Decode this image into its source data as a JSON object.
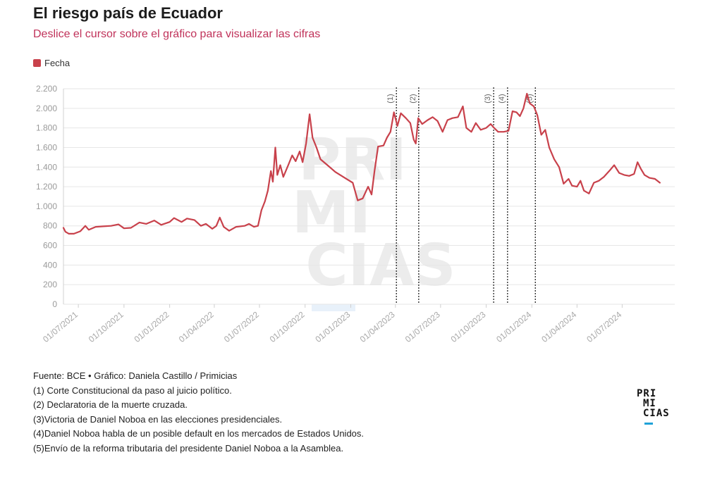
{
  "header": {
    "title": "El riesgo país de Ecuador",
    "subtitle": "Deslice el cursor sobre el gráfico para visualizar las cifras"
  },
  "legend": {
    "label": "Fecha"
  },
  "colors": {
    "line": "#c8414b",
    "subtitle": "#c0325a",
    "grid": "#e6e6e6",
    "logo_bar": "#1fa2d8"
  },
  "watermark": {
    "lines": [
      "PRI",
      "MI",
      "CIAS"
    ]
  },
  "chart_data": {
    "type": "line",
    "title": "El riesgo país de Ecuador",
    "xlabel": "",
    "ylabel": "",
    "ylim": [
      0,
      2200
    ],
    "y_ticks": [
      0,
      200,
      400,
      600,
      800,
      1000,
      1200,
      1400,
      1600,
      1800,
      2000,
      2200
    ],
    "y_tick_labels": [
      "0",
      "200",
      "400",
      "600",
      "800",
      "1.000",
      "1.200",
      "1.400",
      "1.600",
      "1.800",
      "2.000",
      "2.200"
    ],
    "x_range": [
      "2021-06-01",
      "2024-10-15"
    ],
    "x_ticks": [
      "2021-07-01",
      "2021-10-01",
      "2022-01-01",
      "2022-04-01",
      "2022-07-01",
      "2022-10-01",
      "2023-01-01",
      "2023-04-01",
      "2023-07-01",
      "2023-10-01",
      "2024-01-01",
      "2024-04-01",
      "2024-07-01"
    ],
    "x_tick_labels": [
      "01/07/2021",
      "01/10/2021",
      "01/01/2022",
      "01/04/2022",
      "01/07/2022",
      "01/10/2022",
      "01/01/2023",
      "01/04/2023",
      "01/07/2023",
      "01/10/2023",
      "01/01/2024",
      "01/04/2024",
      "01/07/2024"
    ],
    "series": [
      {
        "name": "Fecha",
        "color": "#c8414b",
        "points": [
          [
            "2021-06-01",
            780
          ],
          [
            "2021-06-05",
            740
          ],
          [
            "2021-06-12",
            720
          ],
          [
            "2021-06-22",
            720
          ],
          [
            "2021-07-05",
            745
          ],
          [
            "2021-07-15",
            800
          ],
          [
            "2021-07-22",
            760
          ],
          [
            "2021-08-05",
            790
          ],
          [
            "2021-08-20",
            795
          ],
          [
            "2021-09-05",
            800
          ],
          [
            "2021-09-20",
            815
          ],
          [
            "2021-10-01",
            775
          ],
          [
            "2021-10-15",
            780
          ],
          [
            "2021-11-01",
            835
          ],
          [
            "2021-11-15",
            820
          ],
          [
            "2021-12-01",
            855
          ],
          [
            "2021-12-15",
            810
          ],
          [
            "2022-01-01",
            840
          ],
          [
            "2022-01-10",
            880
          ],
          [
            "2022-01-25",
            840
          ],
          [
            "2022-02-05",
            875
          ],
          [
            "2022-02-20",
            860
          ],
          [
            "2022-03-05",
            800
          ],
          [
            "2022-03-15",
            820
          ],
          [
            "2022-03-28",
            770
          ],
          [
            "2022-04-05",
            800
          ],
          [
            "2022-04-12",
            885
          ],
          [
            "2022-04-20",
            790
          ],
          [
            "2022-05-01",
            750
          ],
          [
            "2022-05-15",
            790
          ],
          [
            "2022-06-01",
            800
          ],
          [
            "2022-06-10",
            820
          ],
          [
            "2022-06-20",
            790
          ],
          [
            "2022-06-28",
            800
          ],
          [
            "2022-07-05",
            960
          ],
          [
            "2022-07-12",
            1050
          ],
          [
            "2022-07-18",
            1160
          ],
          [
            "2022-07-24",
            1360
          ],
          [
            "2022-07-28",
            1250
          ],
          [
            "2022-08-02",
            1600
          ],
          [
            "2022-08-06",
            1320
          ],
          [
            "2022-08-12",
            1420
          ],
          [
            "2022-08-18",
            1300
          ],
          [
            "2022-08-28",
            1420
          ],
          [
            "2022-09-05",
            1520
          ],
          [
            "2022-09-12",
            1460
          ],
          [
            "2022-09-20",
            1560
          ],
          [
            "2022-09-26",
            1450
          ],
          [
            "2022-10-03",
            1640
          ],
          [
            "2022-10-10",
            1940
          ],
          [
            "2022-10-16",
            1700
          ],
          [
            "2022-10-24",
            1600
          ],
          [
            "2022-11-01",
            1480
          ],
          [
            "2022-11-15",
            1420
          ],
          [
            "2022-12-01",
            1350
          ],
          [
            "2022-12-20",
            1290
          ],
          [
            "2023-01-05",
            1240
          ],
          [
            "2023-01-15",
            1060
          ],
          [
            "2023-01-25",
            1080
          ],
          [
            "2023-02-05",
            1200
          ],
          [
            "2023-02-12",
            1120
          ],
          [
            "2023-02-18",
            1360
          ],
          [
            "2023-02-25",
            1610
          ],
          [
            "2023-03-08",
            1620
          ],
          [
            "2023-03-15",
            1700
          ],
          [
            "2023-03-22",
            1760
          ],
          [
            "2023-03-29",
            1960
          ],
          [
            "2023-04-05",
            1820
          ],
          [
            "2023-04-12",
            1950
          ],
          [
            "2023-04-22",
            1900
          ],
          [
            "2023-05-01",
            1850
          ],
          [
            "2023-05-08",
            1680
          ],
          [
            "2023-05-12",
            1640
          ],
          [
            "2023-05-17",
            1900
          ],
          [
            "2023-05-25",
            1840
          ],
          [
            "2023-06-05",
            1880
          ],
          [
            "2023-06-15",
            1910
          ],
          [
            "2023-06-25",
            1870
          ],
          [
            "2023-07-05",
            1760
          ],
          [
            "2023-07-15",
            1880
          ],
          [
            "2023-07-25",
            1900
          ],
          [
            "2023-08-05",
            1910
          ],
          [
            "2023-08-15",
            2020
          ],
          [
            "2023-08-22",
            1800
          ],
          [
            "2023-09-01",
            1760
          ],
          [
            "2023-09-10",
            1850
          ],
          [
            "2023-09-20",
            1780
          ],
          [
            "2023-10-01",
            1800
          ],
          [
            "2023-10-10",
            1840
          ],
          [
            "2023-10-17",
            1800
          ],
          [
            "2023-10-25",
            1760
          ],
          [
            "2023-11-05",
            1760
          ],
          [
            "2023-11-15",
            1770
          ],
          [
            "2023-11-23",
            1970
          ],
          [
            "2023-12-01",
            1960
          ],
          [
            "2023-12-08",
            1920
          ],
          [
            "2023-12-15",
            2000
          ],
          [
            "2023-12-22",
            2150
          ],
          [
            "2023-12-28",
            2050
          ],
          [
            "2024-01-05",
            2020
          ],
          [
            "2024-01-12",
            1930
          ],
          [
            "2024-01-20",
            1730
          ],
          [
            "2024-01-28",
            1780
          ],
          [
            "2024-02-05",
            1600
          ],
          [
            "2024-02-15",
            1480
          ],
          [
            "2024-02-25",
            1400
          ],
          [
            "2024-03-05",
            1230
          ],
          [
            "2024-03-15",
            1280
          ],
          [
            "2024-03-22",
            1210
          ],
          [
            "2024-04-01",
            1200
          ],
          [
            "2024-04-08",
            1260
          ],
          [
            "2024-04-15",
            1160
          ],
          [
            "2024-04-25",
            1130
          ],
          [
            "2024-05-05",
            1240
          ],
          [
            "2024-05-15",
            1260
          ],
          [
            "2024-05-25",
            1300
          ],
          [
            "2024-06-05",
            1360
          ],
          [
            "2024-06-15",
            1420
          ],
          [
            "2024-06-25",
            1340
          ],
          [
            "2024-07-05",
            1320
          ],
          [
            "2024-07-15",
            1310
          ],
          [
            "2024-07-25",
            1330
          ],
          [
            "2024-08-01",
            1450
          ],
          [
            "2024-08-08",
            1380
          ],
          [
            "2024-08-15",
            1320
          ],
          [
            "2024-08-25",
            1290
          ],
          [
            "2024-09-05",
            1280
          ],
          [
            "2024-09-15",
            1240
          ]
        ]
      }
    ],
    "annotations": [
      {
        "label": "(1)",
        "date": "2023-04-03"
      },
      {
        "label": "(2)",
        "date": "2023-05-18"
      },
      {
        "label": "(3)",
        "date": "2023-10-16"
      },
      {
        "label": "(4)",
        "date": "2023-11-13"
      },
      {
        "label": "(5)",
        "date": "2024-01-08"
      }
    ]
  },
  "notes": {
    "source": "Fuente: BCE • Gráfico: Daniela Castillo / Primicias",
    "items": [
      "(1) Corte Constitucional da paso al juicio político.",
      "(2) Declaratoria de la muerte cruzada.",
      "(3)Victoria de Daniel Noboa en las elecciones presidenciales.",
      "(4)Daniel Noboa habla de un posible default en los mercados de Estados Unidos.",
      "(5)Envío de la reforma tributaria del presidente Daniel Noboa a la Asamblea."
    ]
  },
  "logo": {
    "lines": [
      "PRI",
      "MI",
      "CIAS"
    ]
  }
}
